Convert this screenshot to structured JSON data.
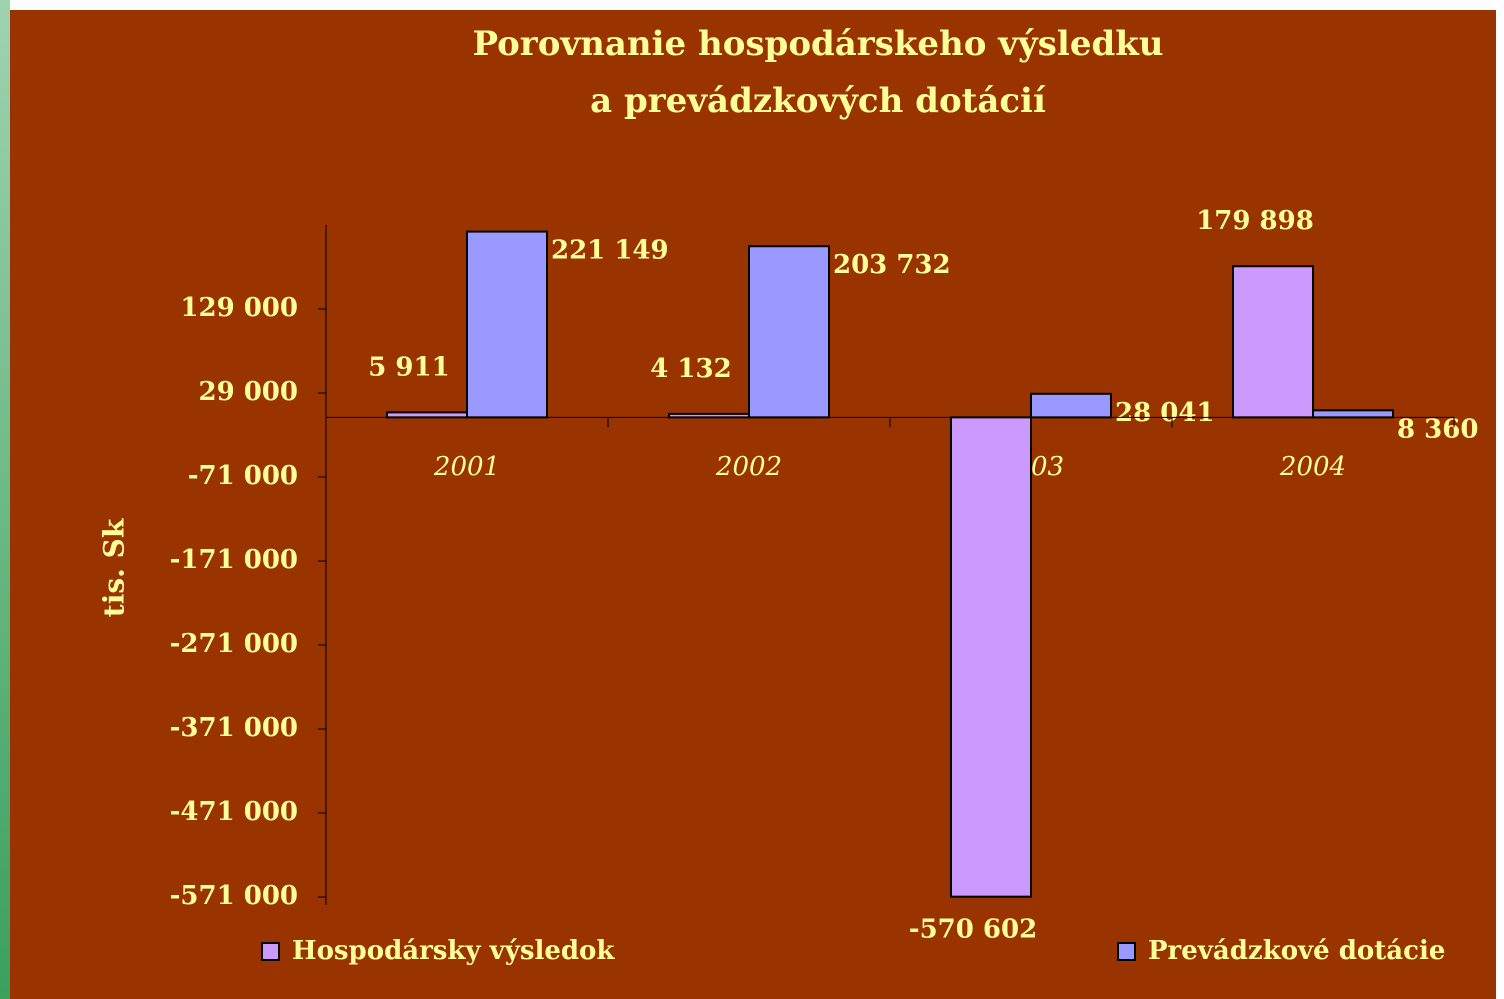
{
  "chart_data": {
    "type": "bar",
    "title": "Porovnanie hospodárskeho výsledku",
    "subtitle": "a prevádzkových dotácií",
    "y_label": "tis. Sk",
    "categories": [
      "2001",
      "2002",
      "2003",
      "2004"
    ],
    "series": [
      {
        "name": "Hospodársky výsledok",
        "color": "#cc99ff",
        "values": [
          5911,
          4132,
          -570602,
          179898
        ],
        "value_labels": [
          "5 911",
          "4 132",
          "-570 602",
          "179 898"
        ]
      },
      {
        "name": "Prevádzkové dotácie",
        "color": "#9999ff",
        "values": [
          221149,
          203732,
          28041,
          8360
        ],
        "value_labels": [
          "221 149",
          "203 732",
          "28 041",
          "8 360"
        ]
      }
    ],
    "ylim": [
      -571000,
      229000
    ],
    "yticks": [
      {
        "value": 129000,
        "label": "129 000"
      },
      {
        "value": 29000,
        "label": "29 000"
      },
      {
        "value": -71000,
        "label": "-71 000"
      },
      {
        "value": -171000,
        "label": "-171 000"
      },
      {
        "value": -271000,
        "label": "-271 000"
      },
      {
        "value": -371000,
        "label": "-371 000"
      },
      {
        "value": -471000,
        "label": "-471 000"
      },
      {
        "value": -571000,
        "label": "-571 000"
      }
    ],
    "legend": "bottom"
  }
}
